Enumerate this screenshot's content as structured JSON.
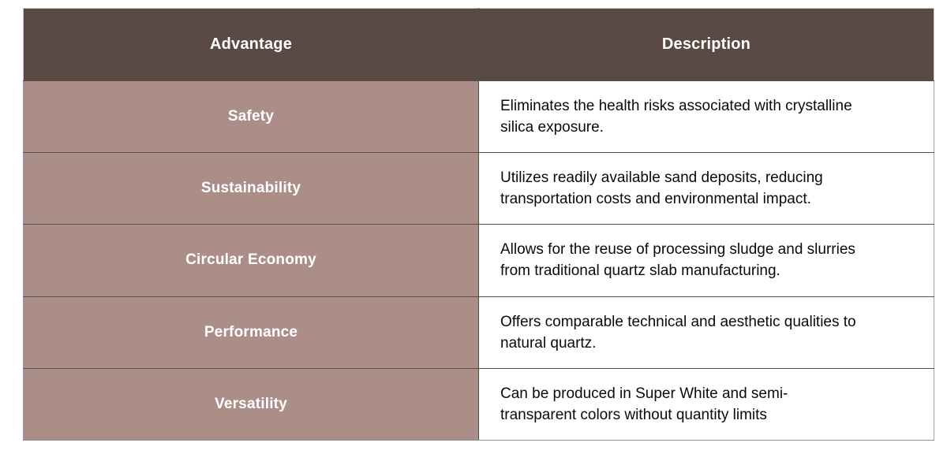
{
  "page": {
    "background": "#ffffff"
  },
  "table": {
    "header": {
      "advantage": "Advantage",
      "description": "Description"
    },
    "rows": [
      {
        "advantage": "Safety",
        "description": "Eliminates the health risks associated with crystalline\nsilica exposure."
      },
      {
        "advantage": "Sustainability",
        "description": "Utilizes readily available sand deposits, reducing\ntransportation costs and environmental impact."
      },
      {
        "advantage": "Circular Economy",
        "description": "Allows for the reuse of processing sludge and slurries\nfrom traditional quartz slab manufacturing."
      },
      {
        "advantage": "Performance",
        "description": "Offers comparable technical and aesthetic qualities to\nnatural quartz."
      },
      {
        "advantage": "Versatility",
        "description": "Can be produced in Super White and semi-\ntransparent colors without quantity limits"
      }
    ],
    "colors": {
      "header_bg": "#5a4a43",
      "header_text": "#ffffff",
      "advantage_bg": "#ab8e87",
      "advantage_text": "#ffffff",
      "description_bg": "#ffffff",
      "description_text": "#0a0a0a",
      "grid_line": "#515151",
      "outer_border": "#a2a2a2"
    }
  }
}
